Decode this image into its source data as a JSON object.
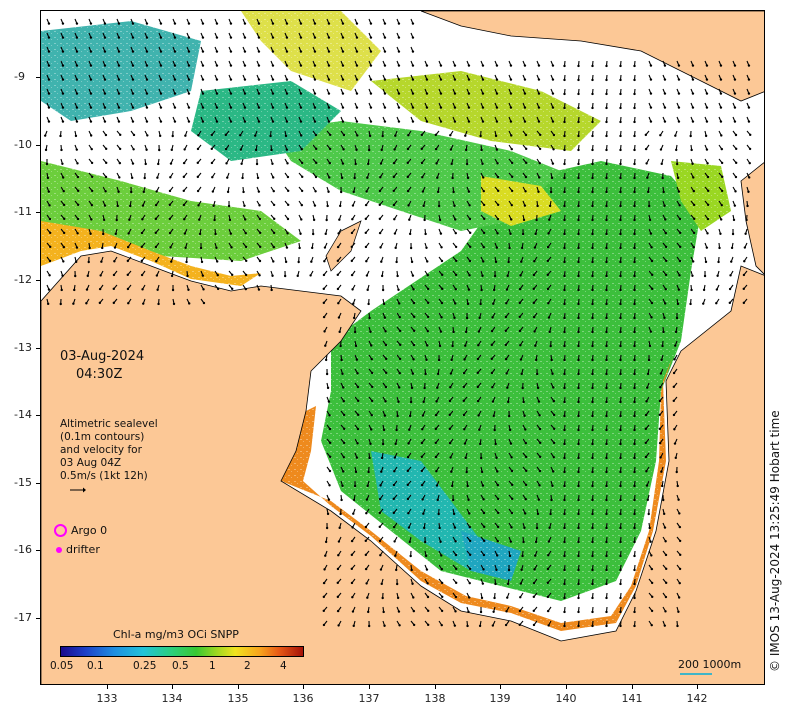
{
  "map": {
    "timestamp_date": "03-Aug-2024",
    "timestamp_time": "04:30Z",
    "legend_lines": [
      "Altimetric sealevel",
      "(0.1m contours)",
      "and velocity for",
      "03 Aug 04Z",
      "0.5m/s (1kt 12h)"
    ],
    "argo_label": "Argo 0",
    "drifter_label": "drifter",
    "colorbar_title": "Chl-a mg/m3 OCi SNPP",
    "colorbar_ticks": [
      "0.05",
      "0.1",
      "0.25",
      "0.5",
      "1",
      "2",
      "4"
    ],
    "scale_label": "200  1000m",
    "credit": "© IMOS 13-Aug-2024 13:25:49 Hobart time",
    "lat_ticks": [
      "-9",
      "-10",
      "-11",
      "-12",
      "-13",
      "-14",
      "-15",
      "-16",
      "-17"
    ],
    "lon_ticks": [
      "133",
      "134",
      "135",
      "136",
      "137",
      "138",
      "139",
      "140",
      "141",
      "142"
    ],
    "colors": {
      "land": "#fcc896",
      "argo": "#ff00ff",
      "drifter": "#ff00ff",
      "scale_bar": "#3fb5c8"
    }
  }
}
